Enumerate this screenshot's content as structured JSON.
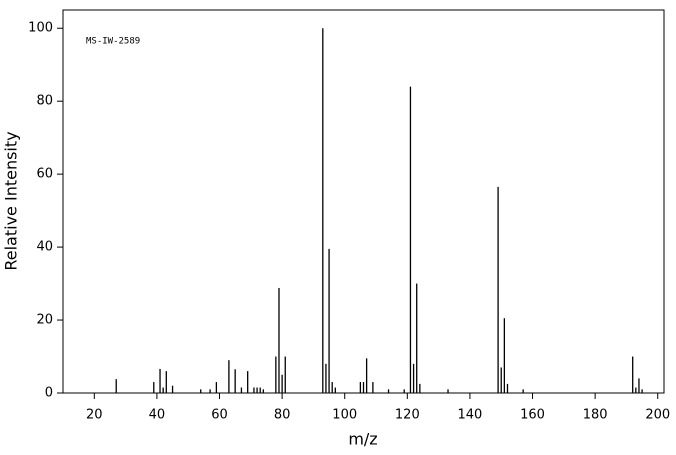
{
  "chart_data": {
    "type": "bar",
    "annotation": "MS-IW-2589",
    "x_label": "m/z",
    "y_label": "Relative Intensity",
    "x": [
      27,
      39,
      41,
      42,
      43,
      45,
      54,
      57,
      59,
      63,
      65,
      67,
      69,
      71,
      72,
      73,
      74,
      78,
      79,
      80,
      81,
      93,
      94,
      95,
      96,
      97,
      105,
      106,
      107,
      109,
      114,
      119,
      121,
      122,
      123,
      124,
      133,
      149,
      150,
      151,
      152,
      157,
      192,
      193,
      194,
      195
    ],
    "values": [
      3.8,
      3,
      6.6,
      1.5,
      6,
      2,
      1,
      1,
      3,
      9,
      6.5,
      1.5,
      6,
      1.5,
      1.5,
      1.5,
      1,
      10,
      28.8,
      5,
      10,
      100,
      8,
      39.5,
      3,
      1.5,
      3,
      3,
      9.5,
      3,
      1,
      1,
      84,
      8,
      30,
      2.5,
      1,
      56.5,
      7,
      20.5,
      2.5,
      1,
      10,
      1.5,
      4,
      1
    ],
    "color": "#000000",
    "xlim": [
      10,
      202
    ],
    "xticks": [
      20,
      40,
      60,
      80,
      100,
      120,
      140,
      160,
      180,
      200
    ],
    "ylim": [
      0,
      105
    ],
    "yticks": [
      0,
      20,
      40,
      60,
      80,
      100
    ]
  }
}
